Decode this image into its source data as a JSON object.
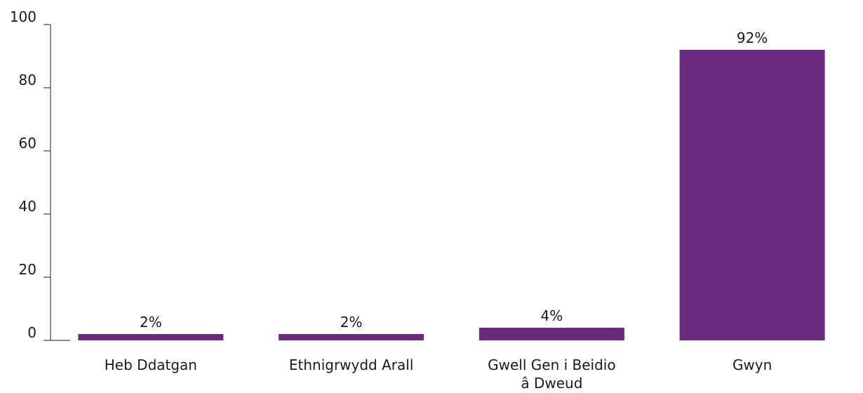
{
  "colors": {
    "bar": "#6b2a7e",
    "text": "#1a1a1a",
    "axis": "#1a1a1a"
  },
  "chart_data": {
    "type": "bar",
    "title": "",
    "xlabel": "",
    "ylabel": "",
    "ylim": [
      0,
      100
    ],
    "yticks": [
      "0",
      "20",
      "40",
      "60",
      "80",
      "100"
    ],
    "grid": false,
    "legend": "none",
    "categories": [
      [
        "Heb Ddatgan"
      ],
      [
        "Ethnigrwydd Arall"
      ],
      [
        "Gwell Gen i Beidio",
        "â Dweud"
      ],
      [
        "Gwyn"
      ]
    ],
    "values": [
      2,
      2,
      4,
      92
    ],
    "data_labels": [
      "2%",
      "2%",
      "4%",
      "92%"
    ]
  }
}
